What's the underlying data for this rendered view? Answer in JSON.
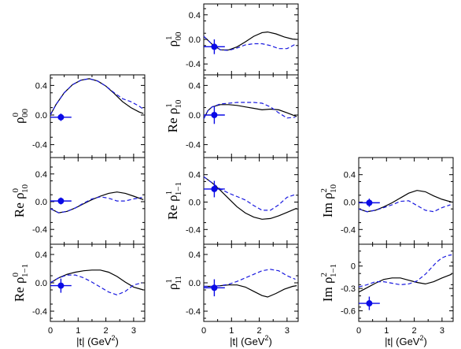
{
  "chart_data": {
    "type": "line",
    "series_legend": [
      {
        "name": "",
        "style": "solid",
        "color": "#000000"
      },
      {
        "name": "",
        "style": "dashed",
        "color": "#1a1adf"
      }
    ],
    "colors": {
      "model_solid": "#000000",
      "model_dashed": "#1a1adf",
      "data_point": "#0a0ae6"
    },
    "xlim": [
      0,
      3.4
    ],
    "xticks": [
      "0",
      "1",
      "2",
      "3"
    ],
    "xlabel": {
      "text": "|t|  (GeV",
      "sup": "2",
      "close": ")"
    },
    "panels": [
      {
        "id": "rho1-00",
        "col": 1,
        "row": 0,
        "ylabel": {
          "prefix": "",
          "sup": "1",
          "sub": "00"
        },
        "ylim": [
          -0.5,
          0.5
        ],
        "yticks": [
          "0.4",
          "0.0",
          "-0.4"
        ],
        "series": [
          {
            "style": "solid",
            "x": [
              0,
              0.3,
              0.6,
              0.9,
              1.2,
              1.5,
              1.8,
              2.1,
              2.3,
              2.6,
              2.9,
              3.2,
              3.35
            ],
            "y": [
              0.05,
              -0.08,
              -0.17,
              -0.17,
              -0.12,
              -0.04,
              0.05,
              0.11,
              0.12,
              0.09,
              0.04,
              0.005,
              0.0
            ]
          },
          {
            "style": "dashed",
            "x": [
              0,
              0.3,
              0.6,
              0.9,
              1.2,
              1.5,
              1.8,
              2.1,
              2.4,
              2.7,
              3.0,
              3.3
            ],
            "y": [
              0.05,
              -0.08,
              -0.17,
              -0.18,
              -0.14,
              -0.09,
              -0.07,
              -0.07,
              -0.1,
              -0.15,
              -0.15,
              -0.08
            ]
          }
        ],
        "point": {
          "x": 0.38,
          "y": -0.12,
          "xerr": 0.38,
          "yerr": 0.12
        }
      },
      {
        "id": "rho0-00",
        "col": 0,
        "row": 1,
        "ylabel": {
          "prefix": "",
          "sup": "0",
          "sub": "00"
        },
        "ylim": [
          -0.5,
          0.5
        ],
        "yticks": [
          "0.4",
          "0.0",
          "-0.4"
        ],
        "series": [
          {
            "style": "solid",
            "x": [
              0,
              0.2,
              0.5,
              0.8,
              1.1,
              1.4,
              1.7,
              2.0,
              2.3,
              2.6,
              2.9,
              3.2,
              3.35
            ],
            "y": [
              0.0,
              0.14,
              0.3,
              0.41,
              0.47,
              0.49,
              0.46,
              0.39,
              0.29,
              0.18,
              0.1,
              0.04,
              0.02
            ]
          },
          {
            "style": "dashed",
            "x": [
              0,
              0.2,
              0.5,
              0.8,
              1.1,
              1.4,
              1.7,
              2.0,
              2.3,
              2.6,
              2.9,
              3.2,
              3.35
            ],
            "y": [
              0.0,
              0.14,
              0.3,
              0.41,
              0.47,
              0.49,
              0.46,
              0.39,
              0.3,
              0.22,
              0.18,
              0.12,
              0.08
            ]
          }
        ],
        "point": {
          "x": 0.38,
          "y": -0.03,
          "xerr": 0.38,
          "yerr": 0.05
        }
      },
      {
        "id": "re-rho1-10",
        "col": 1,
        "row": 1,
        "ylabel": {
          "prefix": "Re",
          "sup": "1",
          "sub": "10"
        },
        "ylim": [
          -0.5,
          0.5
        ],
        "yticks": [
          "0.4",
          "0.0",
          "-0.4"
        ],
        "series": [
          {
            "style": "solid",
            "x": [
              0,
              0.15,
              0.3,
              0.6,
              0.9,
              1.2,
              1.5,
              1.8,
              2.1,
              2.4,
              2.7,
              3.0,
              3.35
            ],
            "y": [
              -0.05,
              0.06,
              0.11,
              0.14,
              0.14,
              0.13,
              0.11,
              0.09,
              0.07,
              0.08,
              0.07,
              0.03,
              -0.02
            ]
          },
          {
            "style": "dashed",
            "x": [
              0,
              0.15,
              0.3,
              0.6,
              0.9,
              1.2,
              1.5,
              1.8,
              2.1,
              2.4,
              2.7,
              3.0,
              3.3
            ],
            "y": [
              -0.05,
              0.06,
              0.11,
              0.15,
              0.16,
              0.17,
              0.17,
              0.17,
              0.16,
              0.11,
              0.03,
              -0.04,
              -0.03
            ]
          }
        ],
        "point": {
          "x": 0.38,
          "y": 0.0,
          "xerr": 0.38,
          "yerr": 0.12
        }
      },
      {
        "id": "re-rho0-10",
        "col": 0,
        "row": 2,
        "ylabel": {
          "prefix": "Re",
          "sup": "0",
          "sub": "10"
        },
        "ylim": [
          -0.5,
          0.5
        ],
        "yticks": [
          "0.4",
          "0.0",
          "-0.4"
        ],
        "series": [
          {
            "style": "solid",
            "x": [
              0,
              0.3,
              0.6,
              0.9,
              1.2,
              1.5,
              1.8,
              2.1,
              2.4,
              2.7,
              3.0,
              3.35
            ],
            "y": [
              -0.1,
              -0.16,
              -0.14,
              -0.09,
              -0.03,
              0.03,
              0.08,
              0.12,
              0.14,
              0.12,
              0.08,
              0.03
            ]
          },
          {
            "style": "dashed",
            "x": [
              0,
              0.3,
              0.6,
              0.9,
              1.2,
              1.5,
              1.8,
              2.1,
              2.4,
              2.7,
              3.0,
              3.3
            ],
            "y": [
              -0.1,
              -0.16,
              -0.14,
              -0.09,
              -0.02,
              0.04,
              0.07,
              0.05,
              0.01,
              0.01,
              0.04,
              0.06
            ]
          }
        ],
        "point": {
          "x": 0.38,
          "y": 0.01,
          "xerr": 0.38,
          "yerr": 0.05
        }
      },
      {
        "id": "re-rho1-1-1",
        "col": 1,
        "row": 2,
        "ylabel": {
          "prefix": "Re",
          "sup": "1",
          "sub": "1−1"
        },
        "ylim": [
          -0.5,
          0.5
        ],
        "yticks": [
          "0.4",
          "0.0",
          "-0.4"
        ],
        "series": [
          {
            "style": "solid",
            "x": [
              0,
              0.3,
              0.6,
              0.9,
              1.2,
              1.5,
              1.8,
              2.1,
              2.4,
              2.7,
              3.0,
              3.35
            ],
            "y": [
              0.37,
              0.28,
              0.17,
              0.05,
              -0.07,
              -0.16,
              -0.22,
              -0.25,
              -0.24,
              -0.2,
              -0.15,
              -0.09
            ]
          },
          {
            "style": "dashed",
            "x": [
              0,
              0.3,
              0.6,
              0.9,
              1.2,
              1.5,
              1.8,
              2.1,
              2.4,
              2.7,
              3.0,
              3.3
            ],
            "y": [
              0.37,
              0.28,
              0.19,
              0.13,
              0.08,
              0.03,
              -0.05,
              -0.12,
              -0.12,
              -0.04,
              0.07,
              0.11
            ]
          }
        ],
        "point": {
          "x": 0.38,
          "y": 0.19,
          "xerr": 0.38,
          "yerr": 0.12
        }
      },
      {
        "id": "im-rho2-10",
        "col": 2,
        "row": 2,
        "ylabel": {
          "prefix": "Im",
          "sup": "2",
          "sub": "10"
        },
        "ylim": [
          -0.5,
          0.5
        ],
        "yticks": [
          "0.4",
          "0.0",
          "-0.4"
        ],
        "series": [
          {
            "style": "solid",
            "x": [
              0,
              0.3,
              0.6,
              0.9,
              1.2,
              1.5,
              1.8,
              2.1,
              2.4,
              2.7,
              3.0,
              3.35
            ],
            "y": [
              -0.1,
              -0.14,
              -0.12,
              -0.07,
              -0.01,
              0.06,
              0.13,
              0.17,
              0.15,
              0.09,
              0.04,
              0.0
            ]
          },
          {
            "style": "dashed",
            "x": [
              0,
              0.3,
              0.6,
              0.9,
              1.2,
              1.5,
              1.8,
              2.1,
              2.4,
              2.7,
              3.0,
              3.3
            ],
            "y": [
              -0.1,
              -0.14,
              -0.12,
              -0.08,
              -0.04,
              0.01,
              0.02,
              -0.05,
              -0.12,
              -0.14,
              -0.08,
              -0.04
            ]
          }
        ],
        "point": {
          "x": 0.38,
          "y": -0.01,
          "xerr": 0.38,
          "yerr": 0.06
        }
      },
      {
        "id": "re-rho0-1-1",
        "col": 0,
        "row": 3,
        "ylabel": {
          "prefix": "Re",
          "sup": "0",
          "sub": "1−1"
        },
        "ylim": [
          -0.5,
          0.5
        ],
        "yticks": [
          "0.4",
          "0.0",
          "-0.4"
        ],
        "series": [
          {
            "style": "solid",
            "x": [
              0,
              0.3,
              0.6,
              0.9,
              1.2,
              1.5,
              1.8,
              2.1,
              2.4,
              2.7,
              3.0,
              3.35
            ],
            "y": [
              0.0,
              0.07,
              0.12,
              0.15,
              0.17,
              0.18,
              0.18,
              0.15,
              0.09,
              0.01,
              -0.06,
              -0.1
            ]
          },
          {
            "style": "dashed",
            "x": [
              0,
              0.3,
              0.6,
              0.9,
              1.2,
              1.5,
              1.8,
              2.1,
              2.4,
              2.7,
              3.0,
              3.3
            ],
            "y": [
              0.0,
              0.07,
              0.11,
              0.11,
              0.07,
              0.01,
              -0.06,
              -0.13,
              -0.17,
              -0.12,
              -0.03,
              0.0
            ]
          }
        ],
        "point": {
          "x": 0.38,
          "y": -0.04,
          "xerr": 0.38,
          "yerr": 0.1
        }
      },
      {
        "id": "rho1-11",
        "col": 1,
        "row": 3,
        "ylabel": {
          "prefix": "",
          "sup": "1",
          "sub": "11"
        },
        "ylim": [
          -0.5,
          0.5
        ],
        "yticks": [
          "0.4",
          "0.0",
          "-0.4"
        ],
        "series": [
          {
            "style": "solid",
            "x": [
              0,
              0.3,
              0.6,
              0.9,
              1.2,
              1.5,
              1.8,
              2.1,
              2.3,
              2.6,
              2.9,
              3.2,
              3.35
            ],
            "y": [
              -0.05,
              -0.05,
              -0.04,
              -0.03,
              -0.03,
              -0.06,
              -0.12,
              -0.18,
              -0.2,
              -0.15,
              -0.09,
              -0.05,
              -0.04
            ]
          },
          {
            "style": "dashed",
            "x": [
              0,
              0.3,
              0.6,
              0.9,
              1.2,
              1.5,
              1.8,
              2.1,
              2.4,
              2.7,
              3.0,
              3.3
            ],
            "y": [
              -0.05,
              -0.05,
              -0.04,
              -0.02,
              0.02,
              0.07,
              0.12,
              0.17,
              0.19,
              0.17,
              0.1,
              0.05
            ]
          }
        ],
        "point": {
          "x": 0.38,
          "y": -0.07,
          "xerr": 0.38,
          "yerr": 0.12
        }
      },
      {
        "id": "im-rho2-1-1",
        "col": 2,
        "row": 3,
        "ylabel": {
          "prefix": "Im",
          "sup": "2",
          "sub": "1−1"
        },
        "ylim": [
          -0.7,
          0.25
        ],
        "yticks": [
          "0",
          "-0.3",
          "-0.6"
        ],
        "series": [
          {
            "style": "solid",
            "x": [
              0,
              0.3,
              0.6,
              0.9,
              1.2,
              1.5,
              1.8,
              2.1,
              2.4,
              2.7,
              3.0,
              3.35
            ],
            "y": [
              -0.35,
              -0.29,
              -0.23,
              -0.18,
              -0.16,
              -0.16,
              -0.19,
              -0.22,
              -0.24,
              -0.21,
              -0.16,
              -0.11
            ]
          },
          {
            "style": "dashed",
            "x": [
              0,
              0.3,
              0.6,
              0.9,
              1.2,
              1.5,
              1.8,
              2.1,
              2.4,
              2.6,
              2.8,
              3.0,
              3.2,
              3.35
            ],
            "y": [
              -0.28,
              -0.25,
              -0.21,
              -0.21,
              -0.23,
              -0.25,
              -0.24,
              -0.2,
              -0.11,
              -0.03,
              0.05,
              0.11,
              0.14,
              0.15
            ]
          }
        ],
        "point": {
          "x": 0.38,
          "y": -0.5,
          "xerr": 0.38,
          "yerr": 0.09
        }
      }
    ]
  }
}
